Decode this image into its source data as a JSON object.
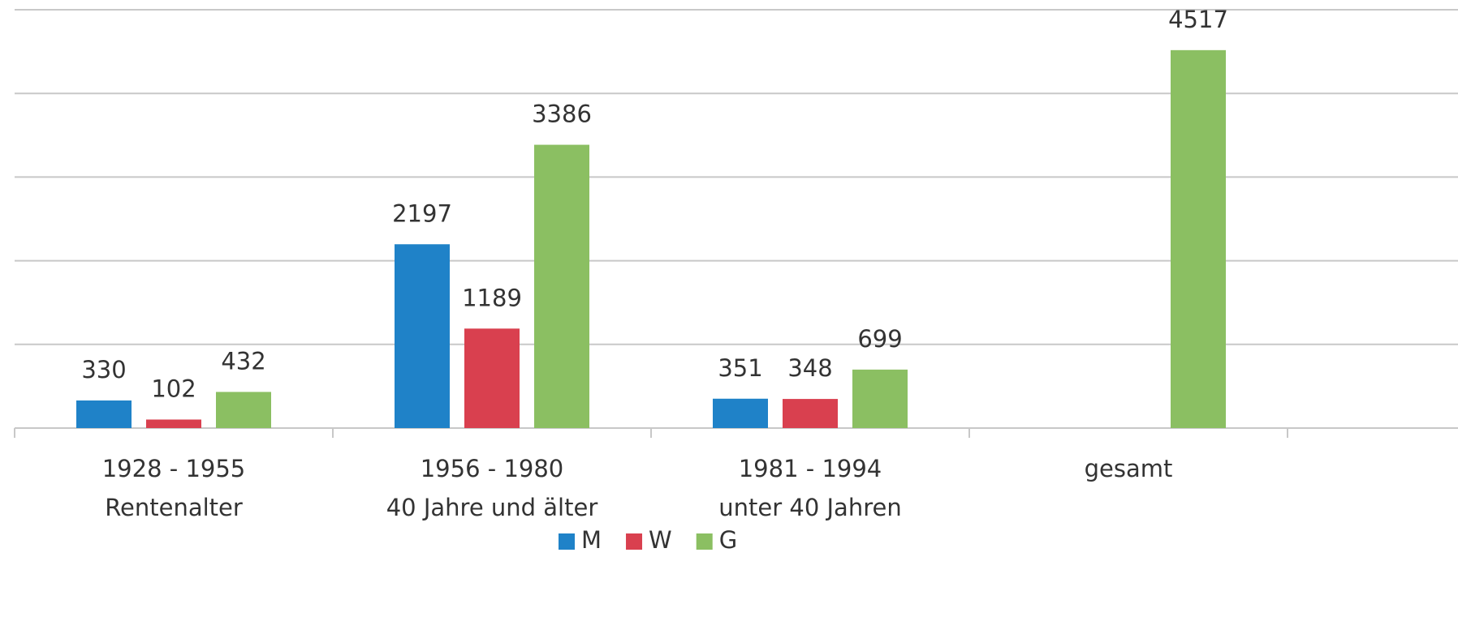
{
  "chart_data": {
    "type": "bar",
    "categories": [
      [
        "1928 - 1955",
        "Rentenalter"
      ],
      [
        "1956 - 1980",
        "40 Jahre und älter"
      ],
      [
        "1981 - 1994",
        "unter 40 Jahren"
      ],
      [
        "gesamt"
      ]
    ],
    "series": [
      {
        "name": "M",
        "color": "#1f82c8",
        "values": [
          330,
          2197,
          351,
          null
        ]
      },
      {
        "name": "W",
        "color": "#d9404f",
        "values": [
          102,
          1189,
          348,
          null
        ]
      },
      {
        "name": "G",
        "color": "#8bbf62",
        "values": [
          432,
          3386,
          699,
          4517
        ]
      }
    ],
    "ylim": [
      0,
      5000
    ],
    "yticks": [
      0,
      1000,
      2000,
      3000,
      4000,
      5000
    ],
    "grid": true,
    "legend": "bottom"
  }
}
